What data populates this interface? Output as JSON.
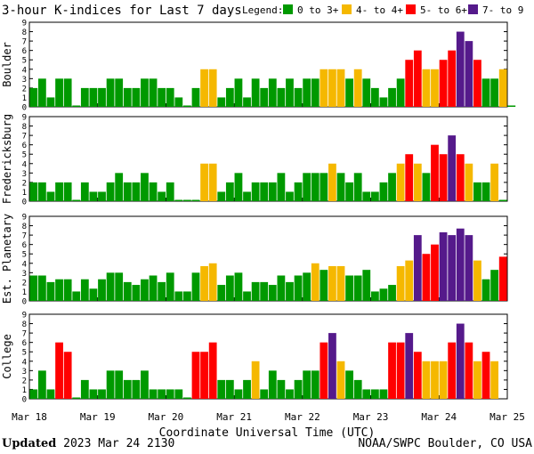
{
  "title": "3-hour K-indices for Last 7 days",
  "legend": {
    "label": "Legend:",
    "items": [
      {
        "label": "0 to 3+",
        "color": "#009900"
      },
      {
        "label": "4- to 4+",
        "color": "#f5b800"
      },
      {
        "label": "5- to 6+",
        "color": "#ff0000"
      },
      {
        "label": "7- to 9",
        "color": "#551a8b"
      }
    ]
  },
  "footer": {
    "updated_label": "Updated",
    "updated_value": "2023 Mar 24 2130",
    "source": "NOAA/SWPC Boulder, CO USA"
  },
  "chart_data": {
    "type": "bar",
    "xlabel": "Coordinate Universal Time (UTC)",
    "x_tick_labels": [
      "Mar 18",
      "Mar 19",
      "Mar 20",
      "Mar 21",
      "Mar 22",
      "Mar 23",
      "Mar 24",
      "Mar 25"
    ],
    "ylim": [
      0,
      9
    ],
    "y_ticks": [
      0,
      1,
      2,
      3,
      4,
      5,
      6,
      7,
      8,
      9
    ],
    "intervals_per_day": 8,
    "panels": [
      {
        "name": "Boulder",
        "values": [
          2,
          3,
          1,
          3,
          3,
          0,
          2,
          2,
          2,
          3,
          3,
          2,
          2,
          3,
          3,
          2,
          2,
          1,
          0,
          2,
          4,
          4,
          1,
          2,
          3,
          1,
          3,
          2,
          3,
          2,
          3,
          2,
          3,
          3,
          4,
          4,
          4,
          3,
          4,
          3,
          2,
          1,
          2,
          3,
          5,
          6,
          4,
          4,
          5,
          6,
          8,
          7,
          5,
          3,
          3,
          4,
          0
        ]
      },
      {
        "name": "Fredericksburg",
        "values": [
          2,
          2,
          1,
          2,
          2,
          0,
          2,
          1,
          1,
          2,
          3,
          2,
          2,
          3,
          2,
          1,
          2,
          0,
          0,
          0,
          4,
          4,
          1,
          2,
          3,
          1,
          2,
          2,
          2,
          3,
          1,
          2,
          3,
          3,
          3,
          4,
          3,
          2,
          3,
          1,
          1,
          2,
          3,
          4,
          5,
          4,
          3,
          6,
          5,
          7,
          5,
          4,
          2,
          2,
          4,
          0
        ]
      },
      {
        "name": "Est. Planetary",
        "values": [
          2.7,
          2.7,
          2,
          2.3,
          2.3,
          1,
          2.3,
          1.3,
          2.3,
          3,
          3,
          2,
          1.7,
          2.3,
          2.7,
          2,
          3,
          1,
          1,
          3,
          3.7,
          4,
          1.7,
          2.7,
          3,
          1,
          2,
          2,
          1.7,
          2.7,
          2,
          2.7,
          3,
          4,
          3.3,
          3.7,
          3.7,
          2.7,
          2.7,
          3.3,
          1,
          1.3,
          1.7,
          3.7,
          4.3,
          7,
          5,
          6,
          7.3,
          7,
          7.7,
          7,
          4.3,
          2.3,
          3.3,
          4.7
        ]
      },
      {
        "name": "College",
        "values": [
          1,
          3,
          1,
          6,
          5,
          0,
          2,
          1,
          1,
          3,
          3,
          2,
          2,
          3,
          1,
          1,
          1,
          1,
          0,
          5,
          5,
          6,
          2,
          2,
          1,
          2,
          4,
          1,
          3,
          2,
          1,
          2,
          3,
          3,
          6,
          7,
          4,
          3,
          2,
          1,
          1,
          1,
          6,
          6,
          7,
          5,
          4,
          4,
          4,
          6,
          8,
          6,
          4,
          5,
          4
        ]
      }
    ]
  }
}
